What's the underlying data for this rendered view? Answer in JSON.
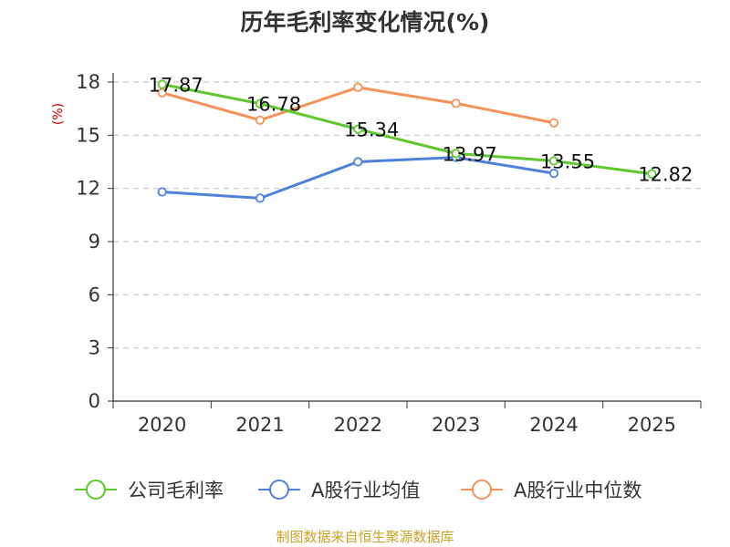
{
  "chart_data": {
    "type": "line",
    "title": "历年毛利率变化情况(%)",
    "ylabel": "(%)",
    "xlabel": "",
    "categories": [
      "2020",
      "2021",
      "2022",
      "2023",
      "2024",
      "2025"
    ],
    "ylim": [
      0,
      18
    ],
    "yticks": [
      0,
      3,
      6,
      9,
      12,
      15,
      18
    ],
    "grid": true,
    "legend_position": "bottom",
    "series": [
      {
        "name": "公司毛利率",
        "color": "#5ec82e",
        "values": [
          17.87,
          16.78,
          15.34,
          13.97,
          13.55,
          12.82
        ],
        "labels": [
          "17.87",
          "16.78",
          "15.34",
          "13.97",
          "13.55",
          "12.82"
        ]
      },
      {
        "name": "A股行业均值",
        "color": "#4f81d9",
        "values": [
          11.8,
          11.45,
          13.5,
          13.75,
          12.85,
          null
        ]
      },
      {
        "name": "A股行业中位数",
        "color": "#f5925a",
        "values": [
          17.4,
          15.85,
          17.7,
          16.8,
          15.7,
          null
        ]
      }
    ],
    "source": "制图数据来自恒生聚源数据库"
  }
}
